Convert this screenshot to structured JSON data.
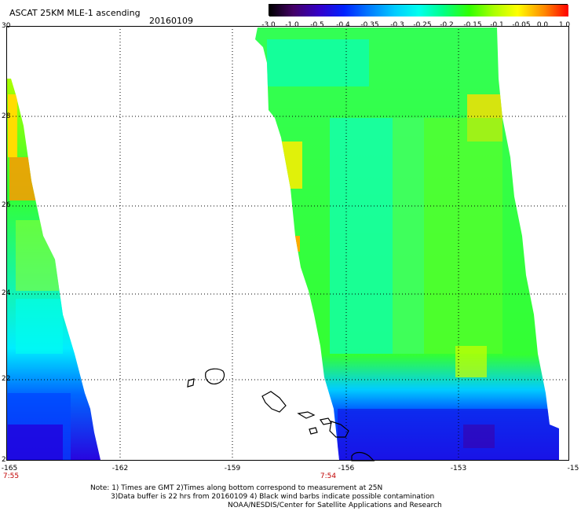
{
  "title": "ASCAT 25KM MLE-1 ascending",
  "date": "20160109",
  "colorbar": {
    "labels": [
      "-3.0",
      "-1.0",
      "-0.5",
      "-0.4",
      "-0.35",
      "-0.3",
      "-0.25",
      "-0.2",
      "-0.15",
      "-0.1",
      "-0.05",
      "0.0",
      "1.0"
    ],
    "colors": [
      "#1a0010",
      "#4b0082",
      "#3a00c8",
      "#0033ff",
      "#0088ff",
      "#00ccff",
      "#00ffee",
      "#00ff88",
      "#33ff00",
      "#ccff00",
      "#ffcc00",
      "#ff6600",
      "#ff0000"
    ]
  },
  "axes": {
    "y_labels": [
      "30",
      "28",
      "26",
      "24",
      "22",
      "2"
    ],
    "x_labels": [
      "-165",
      "-162",
      "-159",
      "-156",
      "-153",
      "-15"
    ]
  },
  "times": {
    "left": "7:55",
    "center": "7:54"
  },
  "notes": {
    "line1": "Note: 1) Times are GMT 2)Times along bottom correspond to measurement at 25N",
    "line2": "3)Data buffer is 22 hrs from 20160109 4) Black wind barbs indicate possible contamination",
    "line3": "NOAA/NESDIS/Center for Satellite Applications and Research"
  },
  "colors": {
    "green": "#33ff33",
    "cyan": "#00ffee",
    "blue": "#0033ff",
    "deep_blue": "#0000cc",
    "yellow": "#ffff00",
    "orange": "#ffaa00"
  }
}
